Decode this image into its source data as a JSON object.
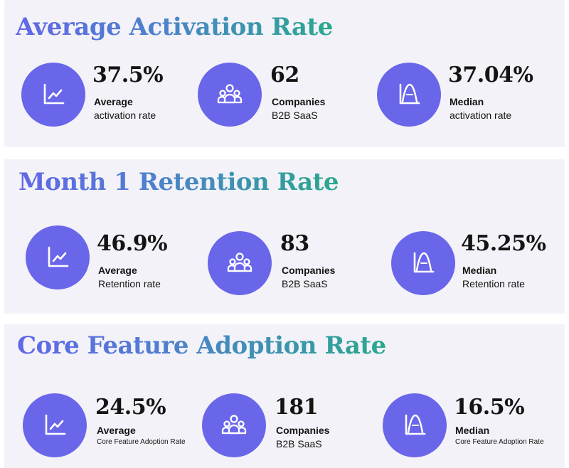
{
  "colors": {
    "accent": "#6a66ea",
    "panel": "#f3f2f8",
    "title_start": "#6366e8",
    "title_end": "#2aa88e"
  },
  "sections": [
    {
      "title": "Average Activation Rate",
      "stats": [
        {
          "icon": "trend-chart-icon",
          "value": "37.5%",
          "label": "Average",
          "sub": "activation rate"
        },
        {
          "icon": "users-group-icon",
          "value": "62",
          "label": "Companies",
          "sub": "B2B SaaS"
        },
        {
          "icon": "bell-curve-icon",
          "value": "37.04%",
          "label": "Median",
          "sub": "activation rate"
        }
      ]
    },
    {
      "title": "Month 1 Retention Rate",
      "stats": [
        {
          "icon": "trend-chart-icon",
          "value": "46.9%",
          "label": "Average",
          "sub": "Retention rate"
        },
        {
          "icon": "users-group-icon",
          "value": "83",
          "label": "Companies",
          "sub": "B2B SaaS"
        },
        {
          "icon": "bell-curve-icon",
          "value": "45.25%",
          "label": "Median",
          "sub": "Retention rate"
        }
      ]
    },
    {
      "title": "Core Feature Adoption Rate",
      "stats": [
        {
          "icon": "trend-chart-icon",
          "value": "24.5%",
          "label": "Average",
          "sub": "Core Feature Adoption Rate"
        },
        {
          "icon": "users-group-icon",
          "value": "181",
          "label": "Companies",
          "sub": "B2B SaaS"
        },
        {
          "icon": "bell-curve-icon",
          "value": "16.5%",
          "label": "Median",
          "sub": "Core Feature Adoption Rate"
        }
      ]
    }
  ]
}
